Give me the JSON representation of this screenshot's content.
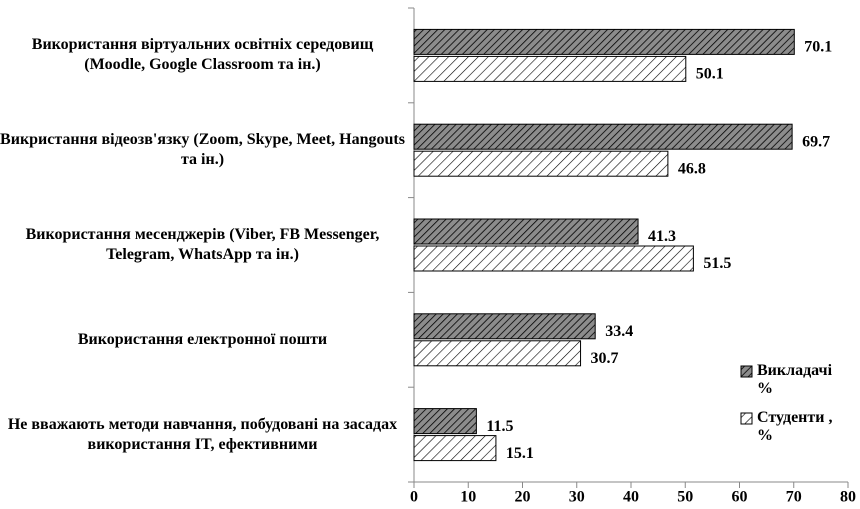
{
  "chart_data": {
    "type": "hbar",
    "categories": [
      "Використання віртуальних освітніх середовищ (Moodle, Google Classroom та ін.)",
      "Викристання відеозв'язку (Zoom, Skype, Meet, Hangouts та ін.)",
      "Використання месенджерів (Viber, FB Messenger, Telegram, WhatsApp та ін.)",
      "Використання електронної пошти",
      "Не вважають методи навчання, побудовані на засадах використання IT, ефективними"
    ],
    "series": [
      {
        "name": "Викладачі %",
        "color": "#8c8c8c",
        "values": [
          70.1,
          69.7,
          41.3,
          33.4,
          11.5
        ]
      },
      {
        "name": "Студенти , %",
        "color": "#ffffff",
        "values": [
          50.1,
          46.8,
          51.5,
          30.7,
          15.1
        ]
      }
    ],
    "xlim": [
      0,
      80
    ],
    "xticks": [
      0,
      10,
      20,
      30,
      40,
      50,
      60,
      70,
      80
    ],
    "grid": false,
    "legend": "right"
  }
}
